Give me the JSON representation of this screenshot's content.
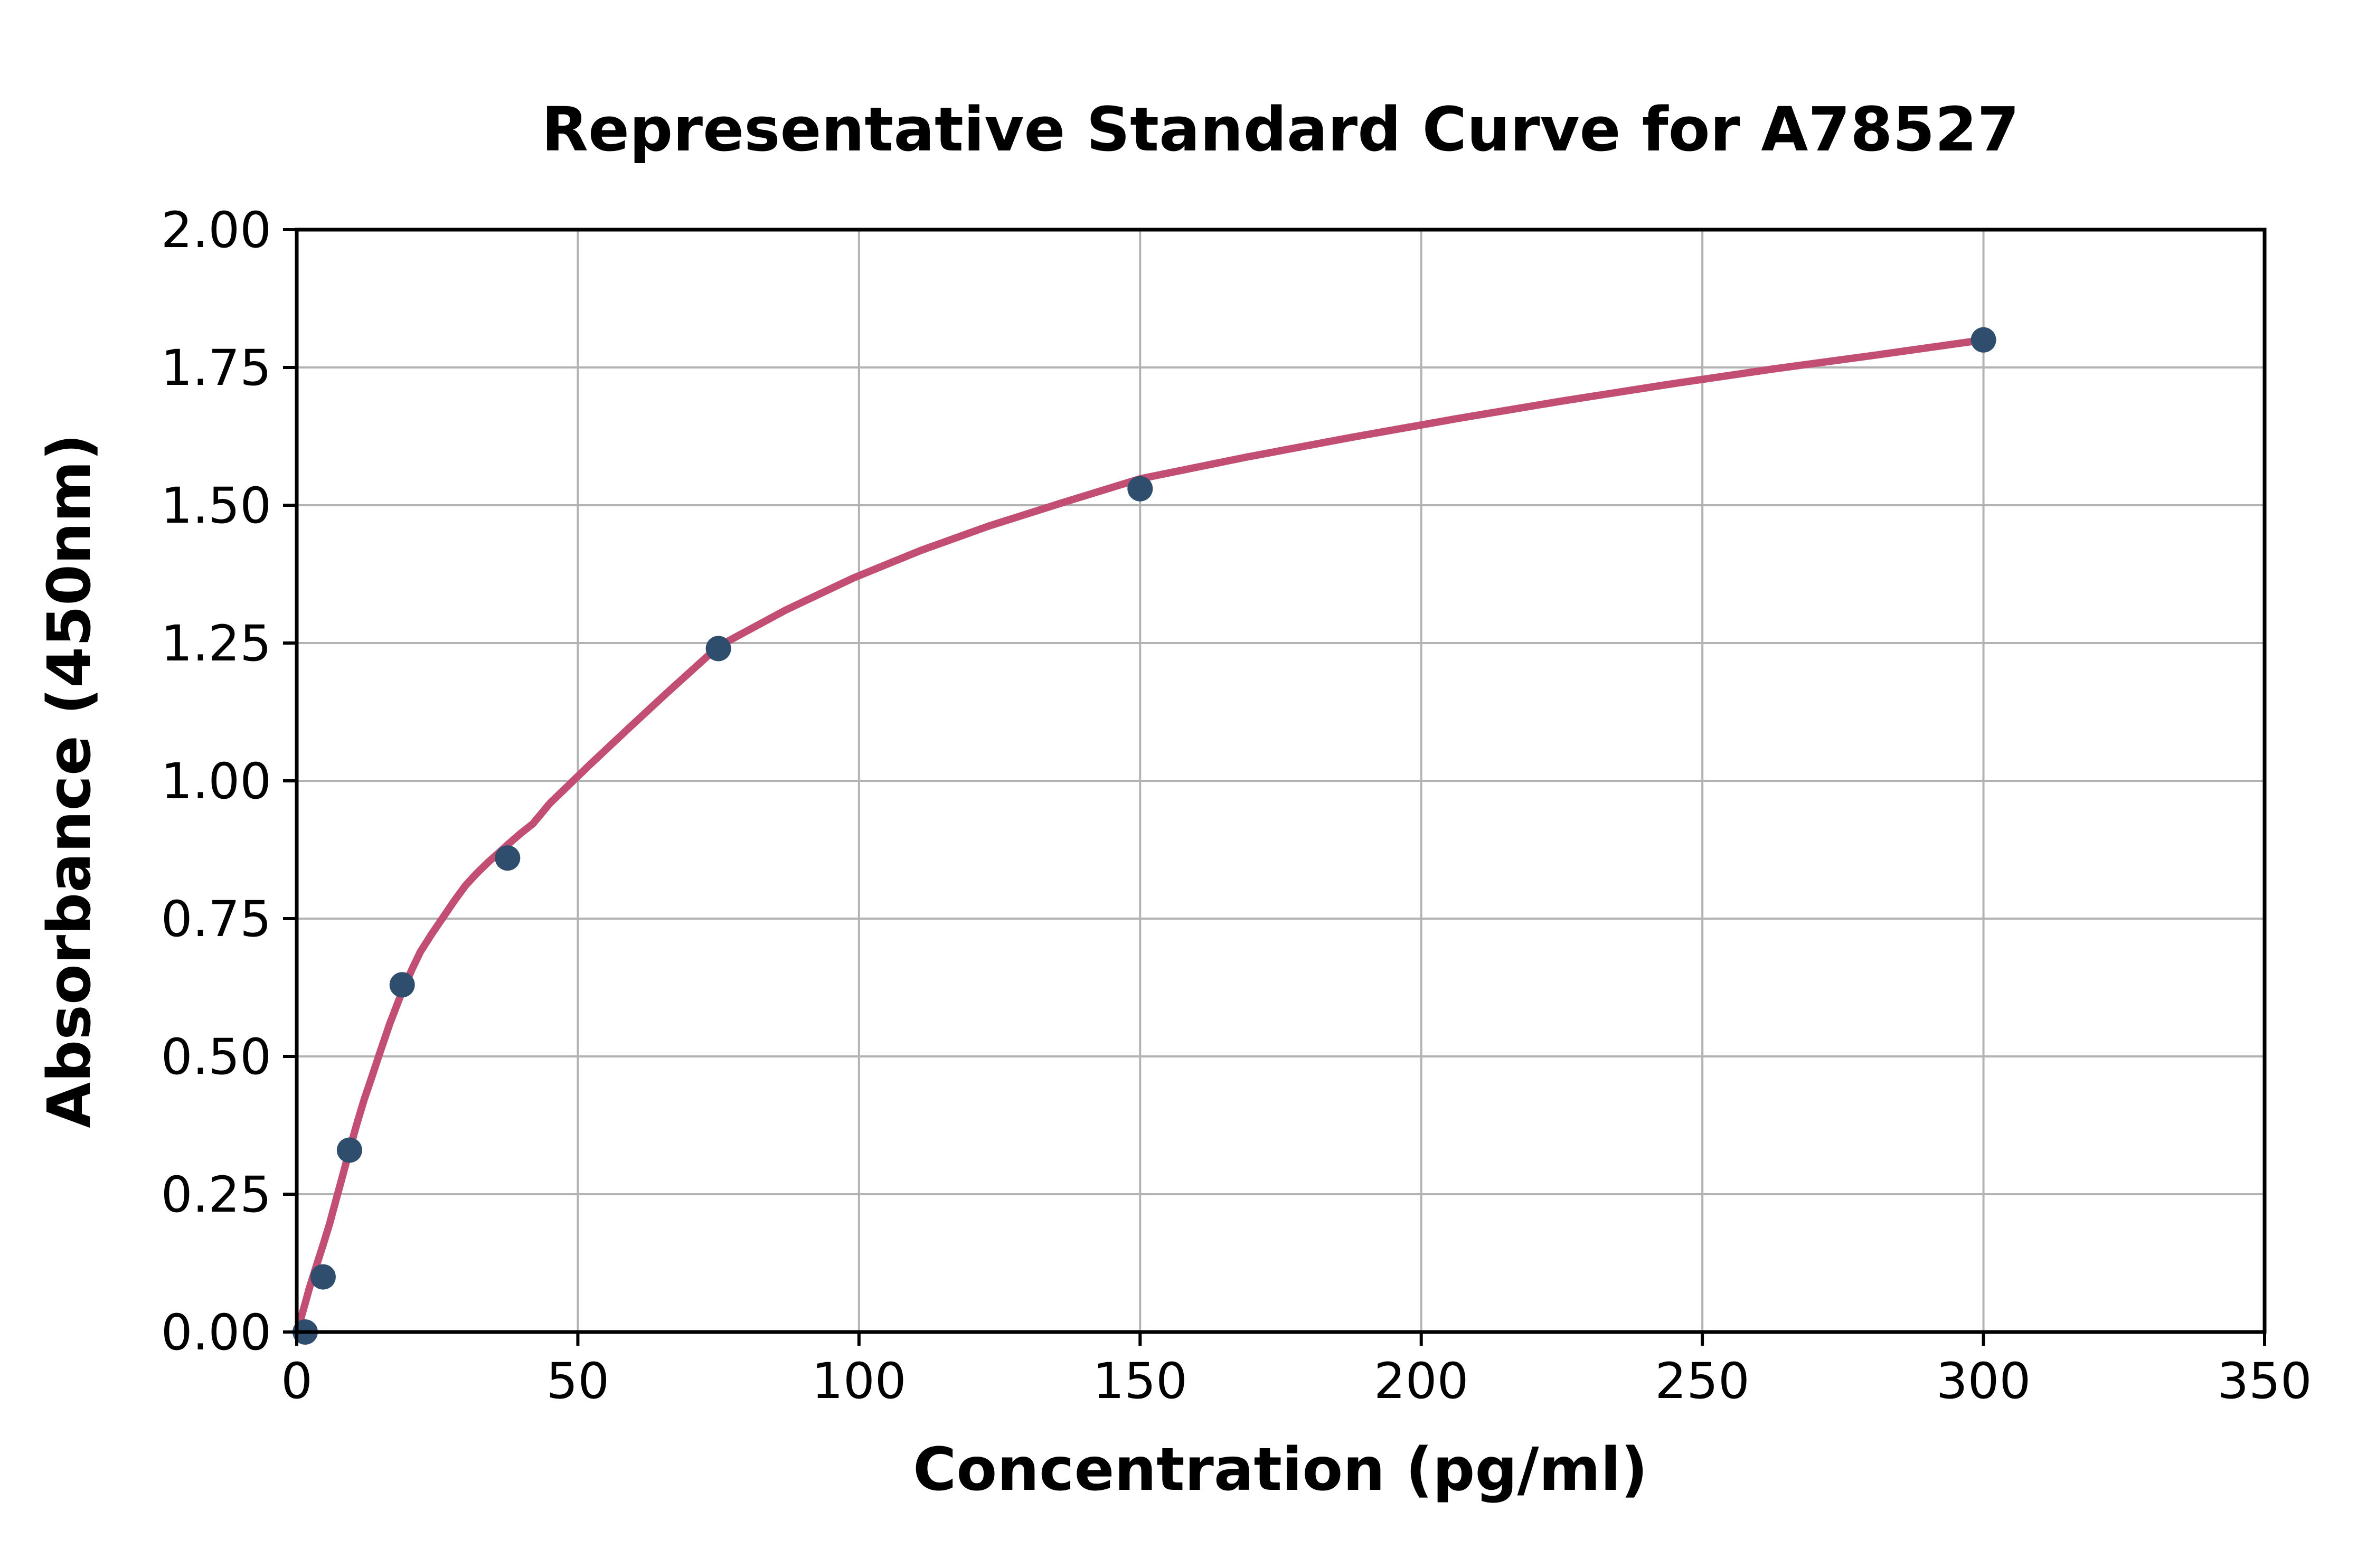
{
  "chart_data": {
    "type": "scatter",
    "title": "Representative Standard Curve for A78527",
    "xlabel": "Concentration (pg/ml)",
    "ylabel": "Absorbance (450nm)",
    "xlim": [
      0,
      350
    ],
    "ylim": [
      0,
      2.0
    ],
    "x_ticks": [
      0,
      50,
      100,
      150,
      200,
      250,
      300,
      350
    ],
    "x_tick_labels": [
      "0",
      "50",
      "100",
      "150",
      "200",
      "250",
      "300",
      "350"
    ],
    "y_ticks": [
      0,
      0.25,
      0.5,
      0.75,
      1.0,
      1.25,
      1.5,
      1.75,
      2.0
    ],
    "y_tick_labels": [
      "0.00",
      "0.25",
      "0.50",
      "0.75",
      "1.00",
      "1.25",
      "1.50",
      "1.75",
      "2.00"
    ],
    "grid": true,
    "legend_position": "none",
    "colors": {
      "marker": "#2f4e6d",
      "curve": "#c24e74",
      "grid": "#b3b3b3",
      "axis": "#000000",
      "background": "#ffffff",
      "text": "#000000"
    },
    "series": [
      {
        "name": "standard-points",
        "type": "scatter",
        "points": [
          [
            1.5,
            0.0
          ],
          [
            4.69,
            0.1
          ],
          [
            9.38,
            0.33
          ],
          [
            18.75,
            0.63
          ],
          [
            37.5,
            0.86
          ],
          [
            75,
            1.24
          ],
          [
            150,
            1.53
          ],
          [
            300,
            1.8
          ]
        ]
      },
      {
        "name": "fitted-curve",
        "type": "line",
        "points": [
          [
            0.3,
            0.0
          ],
          [
            0.8,
            0.027
          ],
          [
            1.5,
            0.052
          ],
          [
            2.2,
            0.078
          ],
          [
            3.0,
            0.104
          ],
          [
            3.8,
            0.13
          ],
          [
            4.69,
            0.158
          ],
          [
            5.8,
            0.195
          ],
          [
            7.0,
            0.24
          ],
          [
            8.2,
            0.285
          ],
          [
            9.38,
            0.33
          ],
          [
            10.7,
            0.378
          ],
          [
            12,
            0.422
          ],
          [
            13.2,
            0.458
          ],
          [
            14.5,
            0.498
          ],
          [
            16.5,
            0.558
          ],
          [
            18.75,
            0.618
          ],
          [
            20.5,
            0.658
          ],
          [
            22,
            0.69
          ],
          [
            24,
            0.722
          ],
          [
            26,
            0.752
          ],
          [
            28,
            0.782
          ],
          [
            30,
            0.81
          ],
          [
            32,
            0.832
          ],
          [
            34,
            0.852
          ],
          [
            36,
            0.87
          ],
          [
            37.5,
            0.884
          ],
          [
            40,
            0.906
          ],
          [
            42,
            0.922
          ],
          [
            45,
            0.959
          ],
          [
            52,
            1.028
          ],
          [
            59,
            1.095
          ],
          [
            66,
            1.161
          ],
          [
            75,
            1.244
          ],
          [
            87,
            1.31
          ],
          [
            99,
            1.368
          ],
          [
            111,
            1.418
          ],
          [
            123,
            1.462
          ],
          [
            136,
            1.504
          ],
          [
            150,
            1.548
          ],
          [
            168.75,
            1.587
          ],
          [
            187.5,
            1.623
          ],
          [
            206.25,
            1.657
          ],
          [
            225,
            1.689
          ],
          [
            243.75,
            1.719
          ],
          [
            262.5,
            1.747
          ],
          [
            281.25,
            1.773
          ],
          [
            300,
            1.8
          ]
        ]
      }
    ]
  }
}
